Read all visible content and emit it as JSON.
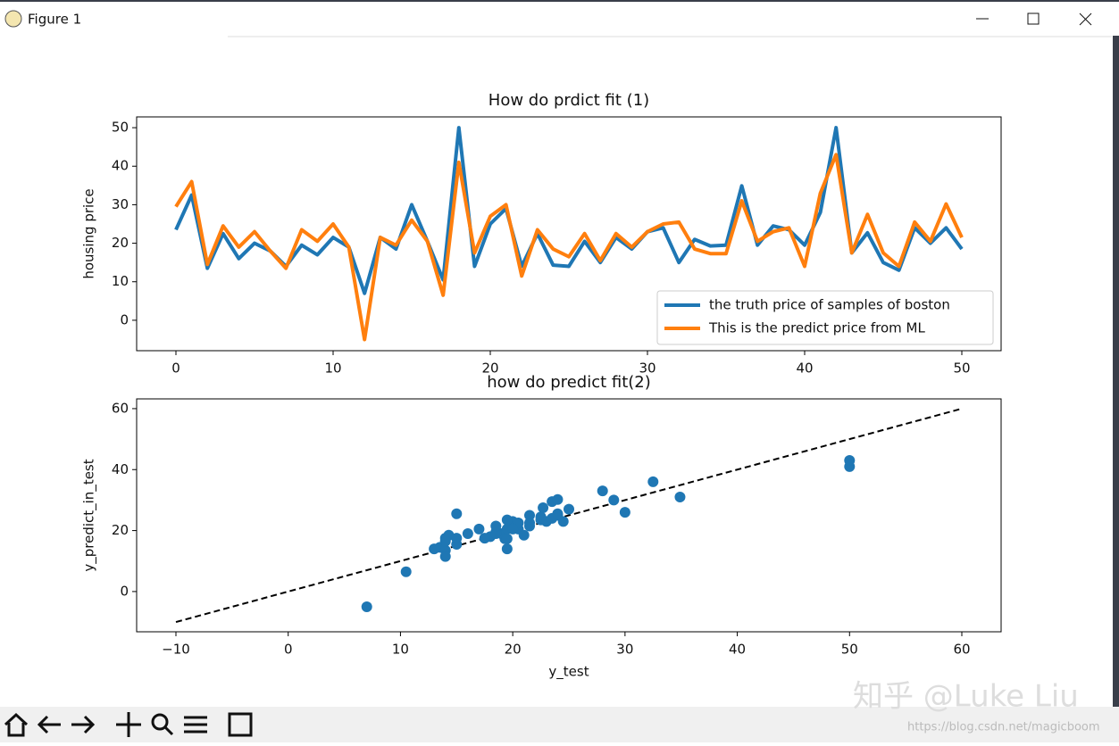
{
  "window": {
    "title": "Figure 1"
  },
  "watermark": {
    "brand": "知乎 @Luke Liu",
    "url": "https://blog.csdn.net/magicboom"
  },
  "chart_data": [
    {
      "type": "line",
      "title": "How do prdict fit (1)",
      "y_label": "housing price",
      "x": [
        0,
        1,
        2,
        3,
        4,
        5,
        6,
        7,
        8,
        9,
        10,
        11,
        12,
        13,
        14,
        15,
        16,
        17,
        18,
        19,
        20,
        21,
        22,
        23,
        24,
        25,
        26,
        27,
        28,
        29,
        30,
        31,
        32,
        33,
        34,
        35,
        36,
        37,
        38,
        39,
        40,
        41,
        42,
        43,
        44,
        45,
        46,
        47,
        48,
        49,
        50
      ],
      "series": [
        {
          "name": "the truth price of samples of boston",
          "color": "#1f77b4",
          "values": [
            23.5,
            32.5,
            13.5,
            22.5,
            16,
            20,
            18,
            14,
            19.5,
            17,
            21.5,
            19,
            7,
            21.5,
            18.5,
            30,
            20.5,
            10.5,
            50,
            14,
            25,
            29,
            14,
            22.5,
            14.3,
            14,
            20.5,
            15,
            21.5,
            18.5,
            23,
            24,
            15,
            21,
            19.3,
            19.5,
            34.9,
            19.5,
            24.5,
            23.5,
            19.5,
            28,
            50,
            17.5,
            22.7,
            15,
            13,
            24,
            20,
            24,
            18.5
          ]
        },
        {
          "name": "This is the predict price from ML",
          "color": "#ff7f0e",
          "values": [
            29.5,
            36,
            14.5,
            24.5,
            19,
            23,
            18,
            13.5,
            23.5,
            20.5,
            25,
            19,
            -5,
            21.5,
            19.5,
            26,
            20.5,
            6.5,
            41,
            17.5,
            27,
            30,
            11.5,
            23.5,
            18.5,
            16.5,
            22.5,
            15.5,
            22.5,
            19,
            23,
            25,
            25.5,
            18.5,
            17.3,
            17.3,
            31,
            20.5,
            23,
            24,
            14,
            33,
            43,
            17.5,
            27.5,
            17.5,
            14,
            25.5,
            20.5,
            30.2,
            21.5
          ]
        }
      ],
      "xlim": [
        -2.5,
        52.5
      ],
      "ylim": [
        -7.9,
        52.8
      ],
      "xticks": [
        0,
        10,
        20,
        30,
        40,
        50
      ],
      "yticks": [
        0,
        10,
        20,
        30,
        40,
        50
      ],
      "legend": "lower right"
    },
    {
      "type": "scatter",
      "title": "how do predict fit(2)",
      "x_label": "y_test",
      "y_label": "y_predict_in_test",
      "series": [
        {
          "color": "#1f77b4",
          "x": [
            23.5,
            32.5,
            13.5,
            22.5,
            16,
            20,
            18,
            14,
            19.5,
            17,
            21.5,
            19,
            7,
            21.5,
            18.5,
            30,
            20.5,
            10.5,
            50,
            14,
            25,
            29,
            14,
            22.5,
            14.3,
            14,
            20.5,
            15,
            21.5,
            18.5,
            23,
            24,
            15,
            21,
            19.3,
            19.5,
            34.9,
            19.5,
            24.5,
            23.5,
            19.5,
            28,
            50,
            17.5,
            22.7,
            15,
            13,
            24,
            20,
            24,
            18.5
          ],
          "values": [
            29.5,
            36,
            14.5,
            24.5,
            19,
            23,
            18,
            13.5,
            23.5,
            20.5,
            25,
            19,
            -5,
            21.5,
            19.5,
            26,
            20.5,
            6.5,
            41,
            17.5,
            27,
            30,
            11.5,
            23.5,
            18.5,
            16.5,
            22.5,
            15.5,
            22.5,
            19,
            23,
            25,
            25.5,
            18.5,
            17.3,
            17.3,
            31,
            20.5,
            23,
            24,
            14,
            33,
            43,
            17.5,
            27.5,
            17.5,
            14,
            25.5,
            20.5,
            30.2,
            21.5
          ]
        }
      ],
      "reference_line": {
        "color": "#000000",
        "x": [
          -10,
          60
        ],
        "y": [
          -10,
          60
        ]
      },
      "xlim": [
        -13.5,
        63.5
      ],
      "ylim": [
        -13.2,
        63.2
      ],
      "xticks": [
        {
          "value": -10,
          "label": "−10"
        },
        0,
        10,
        20,
        30,
        40,
        50,
        60
      ],
      "yticks": [
        0,
        20,
        40,
        60
      ]
    }
  ]
}
